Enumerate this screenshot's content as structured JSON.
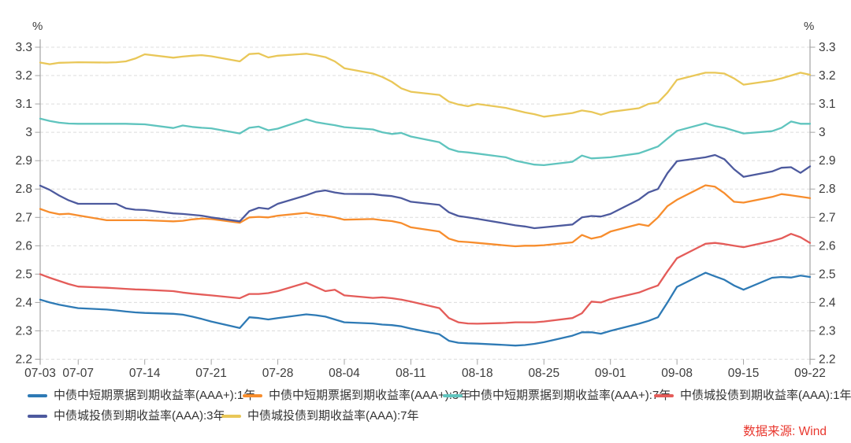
{
  "chart_data": {
    "type": "line",
    "title": "",
    "unit": "%",
    "source_note": "数据来源: Wind",
    "ylim": [
      2.2,
      3.3
    ],
    "ytick_step": 0.1,
    "ytick_labels": [
      "2.2",
      "2.3",
      "2.4",
      "2.5",
      "2.6",
      "2.7",
      "2.8",
      "2.9",
      "3",
      "3.1",
      "3.2",
      "3.3"
    ],
    "grid": "horizontal-dashed",
    "legend_position": "bottom-left-two-rows",
    "x_axis": {
      "total_days": 81,
      "tick_labels": [
        "07-03",
        "07-07",
        "07-14",
        "07-21",
        "07-28",
        "08-04",
        "08-11",
        "08-18",
        "08-25",
        "09-01",
        "09-08",
        "09-15",
        "09-22"
      ],
      "tick_day_offsets": [
        0,
        4,
        11,
        18,
        25,
        32,
        39,
        46,
        53,
        60,
        67,
        74,
        81
      ],
      "point_day_offsets": [
        0,
        1,
        2,
        3,
        4,
        7,
        8,
        9,
        10,
        11,
        14,
        15,
        16,
        17,
        18,
        21,
        22,
        23,
        24,
        25,
        28,
        29,
        30,
        31,
        32,
        35,
        36,
        37,
        38,
        39,
        42,
        43,
        44,
        45,
        46,
        49,
        50,
        51,
        52,
        53,
        56,
        57,
        58,
        59,
        60,
        63,
        64,
        65,
        66,
        67,
        70,
        71,
        72,
        73,
        74,
        77,
        78,
        79,
        80,
        81
      ],
      "point_dates": [
        "07-03",
        "07-04",
        "07-05",
        "07-06",
        "07-07",
        "07-10",
        "07-11",
        "07-12",
        "07-13",
        "07-14",
        "07-17",
        "07-18",
        "07-19",
        "07-20",
        "07-21",
        "07-24",
        "07-25",
        "07-26",
        "07-27",
        "07-28",
        "07-31",
        "08-01",
        "08-02",
        "08-03",
        "08-04",
        "08-07",
        "08-08",
        "08-09",
        "08-10",
        "08-11",
        "08-14",
        "08-15",
        "08-16",
        "08-17",
        "08-18",
        "08-21",
        "08-22",
        "08-23",
        "08-24",
        "08-25",
        "08-28",
        "08-29",
        "08-30",
        "08-31",
        "09-01",
        "09-04",
        "09-05",
        "09-06",
        "09-07",
        "09-08",
        "09-11",
        "09-12",
        "09-13",
        "09-14",
        "09-15",
        "09-18",
        "09-19",
        "09-20",
        "09-21",
        "09-22"
      ]
    },
    "series": [
      {
        "name": "中债中短期票据到期收益率(AAA+):1年",
        "color": "#2e7ab5",
        "values": [
          2.41,
          2.4,
          2.392,
          2.386,
          2.38,
          2.375,
          2.372,
          2.368,
          2.365,
          2.363,
          2.36,
          2.357,
          2.35,
          2.342,
          2.333,
          2.31,
          2.348,
          2.345,
          2.34,
          2.345,
          2.358,
          2.355,
          2.35,
          2.34,
          2.33,
          2.326,
          2.322,
          2.32,
          2.316,
          2.308,
          2.288,
          2.265,
          2.258,
          2.256,
          2.255,
          2.25,
          2.248,
          2.25,
          2.254,
          2.26,
          2.283,
          2.295,
          2.295,
          2.29,
          2.3,
          2.325,
          2.335,
          2.348,
          2.4,
          2.455,
          2.505,
          2.492,
          2.48,
          2.46,
          2.445,
          2.487,
          2.49,
          2.488,
          2.495,
          2.49
        ]
      },
      {
        "name": "中债中短期票据到期收益率(AAA+):3年",
        "color": "#f78d2d",
        "values": [
          2.73,
          2.718,
          2.711,
          2.713,
          2.707,
          2.69,
          2.69,
          2.69,
          2.69,
          2.69,
          2.686,
          2.688,
          2.693,
          2.696,
          2.694,
          2.681,
          2.7,
          2.702,
          2.7,
          2.706,
          2.716,
          2.71,
          2.706,
          2.7,
          2.692,
          2.694,
          2.69,
          2.687,
          2.68,
          2.665,
          2.65,
          2.625,
          2.615,
          2.613,
          2.61,
          2.601,
          2.598,
          2.6,
          2.6,
          2.602,
          2.612,
          2.638,
          2.625,
          2.632,
          2.65,
          2.676,
          2.67,
          2.7,
          2.74,
          2.762,
          2.813,
          2.808,
          2.785,
          2.755,
          2.752,
          2.772,
          2.782,
          2.778,
          2.773,
          2.768
        ]
      },
      {
        "name": "中债中短期票据到期收益率(AAA+):7年",
        "color": "#5fc4be",
        "values": [
          3.048,
          3.04,
          3.034,
          3.031,
          3.03,
          3.03,
          3.03,
          3.03,
          3.029,
          3.028,
          3.015,
          3.024,
          3.019,
          3.016,
          3.014,
          2.996,
          3.016,
          3.02,
          3.007,
          3.013,
          3.046,
          3.036,
          3.03,
          3.025,
          3.018,
          3.01,
          3.0,
          2.994,
          2.998,
          2.985,
          2.965,
          2.942,
          2.932,
          2.929,
          2.925,
          2.912,
          2.9,
          2.893,
          2.886,
          2.884,
          2.896,
          2.918,
          2.908,
          2.91,
          2.912,
          2.926,
          2.938,
          2.95,
          2.978,
          3.005,
          3.032,
          3.022,
          3.016,
          3.006,
          2.996,
          3.004,
          3.016,
          3.038,
          3.03,
          3.03
        ]
      },
      {
        "name": "中债城投债到期收益率(AAA):1年",
        "color": "#e45c59",
        "values": [
          2.5,
          2.487,
          2.476,
          2.465,
          2.456,
          2.452,
          2.45,
          2.448,
          2.446,
          2.445,
          2.44,
          2.435,
          2.431,
          2.428,
          2.425,
          2.415,
          2.43,
          2.43,
          2.433,
          2.44,
          2.47,
          2.455,
          2.44,
          2.445,
          2.425,
          2.416,
          2.418,
          2.415,
          2.41,
          2.403,
          2.38,
          2.345,
          2.33,
          2.326,
          2.325,
          2.328,
          2.33,
          2.33,
          2.33,
          2.333,
          2.345,
          2.362,
          2.403,
          2.4,
          2.412,
          2.435,
          2.448,
          2.46,
          2.51,
          2.556,
          2.607,
          2.61,
          2.606,
          2.6,
          2.595,
          2.617,
          2.626,
          2.642,
          2.63,
          2.61
        ]
      },
      {
        "name": "中债城投债到期收益率(AAA):3年",
        "color": "#4d5a9e",
        "values": [
          2.812,
          2.797,
          2.777,
          2.76,
          2.748,
          2.748,
          2.748,
          2.732,
          2.727,
          2.726,
          2.714,
          2.712,
          2.709,
          2.706,
          2.7,
          2.686,
          2.722,
          2.734,
          2.73,
          2.748,
          2.778,
          2.79,
          2.795,
          2.788,
          2.783,
          2.782,
          2.778,
          2.775,
          2.768,
          2.755,
          2.744,
          2.718,
          2.705,
          2.7,
          2.695,
          2.678,
          2.672,
          2.668,
          2.662,
          2.665,
          2.675,
          2.7,
          2.705,
          2.703,
          2.712,
          2.763,
          2.788,
          2.8,
          2.856,
          2.898,
          2.912,
          2.92,
          2.905,
          2.87,
          2.843,
          2.862,
          2.875,
          2.877,
          2.857,
          2.88
        ]
      },
      {
        "name": "中债城投债到期收益率(AAA):7年",
        "color": "#e9c758",
        "values": [
          3.246,
          3.24,
          3.245,
          3.246,
          3.247,
          3.246,
          3.247,
          3.25,
          3.26,
          3.275,
          3.263,
          3.267,
          3.27,
          3.272,
          3.268,
          3.25,
          3.276,
          3.278,
          3.264,
          3.27,
          3.277,
          3.272,
          3.265,
          3.25,
          3.226,
          3.207,
          3.195,
          3.178,
          3.155,
          3.143,
          3.132,
          3.108,
          3.098,
          3.092,
          3.1,
          3.086,
          3.078,
          3.07,
          3.064,
          3.055,
          3.068,
          3.077,
          3.072,
          3.062,
          3.072,
          3.085,
          3.1,
          3.105,
          3.14,
          3.185,
          3.21,
          3.21,
          3.207,
          3.19,
          3.168,
          3.182,
          3.19,
          3.2,
          3.21,
          3.203
        ]
      }
    ],
    "colors": {
      "source_note": "#e9382f",
      "axis": "#a3a3a3",
      "grid": "#dcdcdc",
      "tick_text": "#3c3c3c"
    }
  }
}
